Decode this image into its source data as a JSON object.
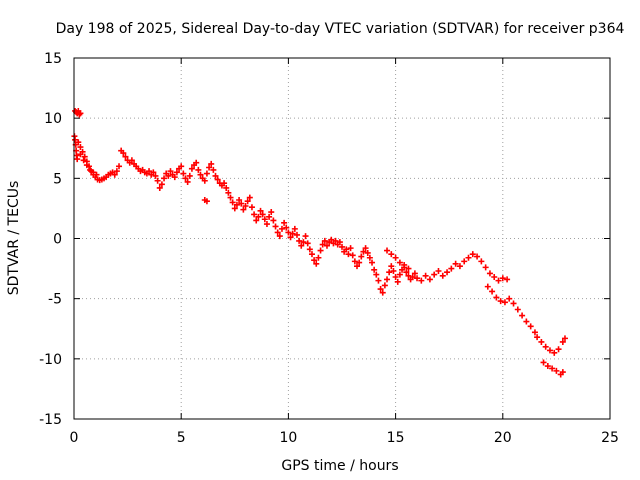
{
  "chart_data": {
    "type": "scatter",
    "title": "Day 198 of 2025, Sidereal Day-to-day VTEC variation (SDTVAR) for receiver p364",
    "xlabel": "GPS time / hours",
    "ylabel": "SDTVAR / TECUs",
    "xlim": [
      0,
      25
    ],
    "ylim": [
      -15,
      15
    ],
    "xticks": [
      0,
      5,
      10,
      15,
      20,
      25
    ],
    "yticks": [
      -15,
      -10,
      -5,
      0,
      5,
      10,
      15
    ],
    "xtick_labels": [
      "0",
      "5",
      "10",
      "15",
      "20",
      "25"
    ],
    "ytick_labels": [
      "-15",
      "-10",
      "-5",
      "0",
      "5",
      "10",
      "15"
    ],
    "grid": true,
    "marker": "+",
    "color": "#ff0000",
    "series": [
      {
        "name": "SDTVAR",
        "points": [
          [
            0.05,
            10.6
          ],
          [
            0.1,
            10.5
          ],
          [
            0.15,
            10.4
          ],
          [
            0.2,
            10.6
          ],
          [
            0.25,
            10.3
          ],
          [
            0.3,
            10.4
          ],
          [
            0.02,
            8.5
          ],
          [
            0.05,
            8.2
          ],
          [
            0.08,
            7.8
          ],
          [
            0.1,
            7.3
          ],
          [
            0.12,
            6.9
          ],
          [
            0.15,
            6.6
          ],
          [
            0.2,
            8.0
          ],
          [
            0.3,
            7.6
          ],
          [
            0.4,
            7.2
          ],
          [
            0.5,
            6.8
          ],
          [
            0.6,
            6.4
          ],
          [
            0.7,
            6.0
          ],
          [
            0.8,
            5.6
          ],
          [
            0.9,
            5.3
          ],
          [
            1.0,
            5.1
          ],
          [
            1.1,
            4.9
          ],
          [
            1.2,
            4.85
          ],
          [
            1.3,
            4.9
          ],
          [
            1.4,
            5.0
          ],
          [
            1.5,
            5.1
          ],
          [
            0.3,
            7.0
          ],
          [
            0.45,
            6.5
          ],
          [
            0.6,
            6.1
          ],
          [
            0.75,
            5.7
          ],
          [
            0.9,
            5.5
          ],
          [
            1.05,
            5.3
          ],
          [
            1.6,
            5.3
          ],
          [
            1.7,
            5.4
          ],
          [
            1.8,
            5.5
          ],
          [
            1.9,
            5.3
          ],
          [
            2.0,
            5.6
          ],
          [
            2.1,
            6.0
          ],
          [
            2.2,
            7.3
          ],
          [
            2.3,
            7.1
          ],
          [
            2.4,
            6.8
          ],
          [
            2.5,
            6.5
          ],
          [
            2.6,
            6.3
          ],
          [
            2.7,
            6.5
          ],
          [
            2.8,
            6.2
          ],
          [
            2.9,
            6.0
          ],
          [
            3.0,
            5.8
          ],
          [
            3.1,
            5.6
          ],
          [
            3.2,
            5.7
          ],
          [
            3.3,
            5.5
          ],
          [
            3.4,
            5.4
          ],
          [
            3.5,
            5.6
          ],
          [
            3.6,
            5.3
          ],
          [
            3.7,
            5.5
          ],
          [
            3.8,
            5.2
          ],
          [
            3.9,
            4.8
          ],
          [
            4.0,
            4.2
          ],
          [
            4.1,
            4.5
          ],
          [
            4.2,
            5.0
          ],
          [
            4.3,
            5.4
          ],
          [
            4.4,
            5.2
          ],
          [
            4.5,
            5.6
          ],
          [
            4.6,
            5.3
          ],
          [
            4.7,
            5.1
          ],
          [
            4.8,
            5.5
          ],
          [
            4.9,
            5.8
          ],
          [
            5.0,
            6.0
          ],
          [
            5.1,
            5.4
          ],
          [
            5.2,
            5.0
          ],
          [
            5.3,
            4.7
          ],
          [
            5.4,
            5.2
          ],
          [
            5.5,
            5.8
          ],
          [
            5.6,
            6.1
          ],
          [
            5.7,
            6.3
          ],
          [
            5.8,
            5.7
          ],
          [
            5.9,
            5.3
          ],
          [
            6.0,
            5.0
          ],
          [
            6.1,
            4.8
          ],
          [
            6.2,
            5.4
          ],
          [
            6.3,
            5.9
          ],
          [
            6.4,
            6.2
          ],
          [
            6.5,
            5.7
          ],
          [
            6.6,
            5.2
          ],
          [
            6.7,
            4.9
          ],
          [
            6.8,
            4.6
          ],
          [
            6.9,
            4.4
          ],
          [
            7.0,
            4.6
          ],
          [
            7.1,
            4.2
          ],
          [
            7.2,
            3.8
          ],
          [
            7.3,
            3.4
          ],
          [
            7.4,
            3.0
          ],
          [
            7.5,
            2.5
          ],
          [
            6.1,
            3.2
          ],
          [
            6.2,
            3.1
          ],
          [
            7.6,
            2.8
          ],
          [
            7.7,
            3.2
          ],
          [
            7.8,
            2.9
          ],
          [
            7.9,
            2.4
          ],
          [
            8.0,
            2.7
          ],
          [
            8.1,
            3.1
          ],
          [
            8.2,
            3.4
          ],
          [
            8.3,
            2.6
          ],
          [
            8.4,
            2.0
          ],
          [
            8.5,
            1.5
          ],
          [
            8.6,
            1.8
          ],
          [
            8.7,
            2.3
          ],
          [
            8.8,
            2.0
          ],
          [
            8.9,
            1.6
          ],
          [
            9.0,
            1.2
          ],
          [
            9.1,
            1.8
          ],
          [
            9.2,
            2.2
          ],
          [
            9.3,
            1.5
          ],
          [
            9.4,
            1.0
          ],
          [
            9.5,
            0.5
          ],
          [
            9.6,
            0.2
          ],
          [
            9.7,
            0.8
          ],
          [
            9.8,
            1.3
          ],
          [
            9.9,
            0.9
          ],
          [
            10.0,
            0.5
          ],
          [
            10.1,
            0.1
          ],
          [
            10.2,
            0.4
          ],
          [
            10.3,
            0.8
          ],
          [
            10.4,
            0.3
          ],
          [
            10.5,
            -0.2
          ],
          [
            10.6,
            -0.6
          ],
          [
            10.7,
            -0.3
          ],
          [
            10.8,
            0.2
          ],
          [
            10.9,
            -0.4
          ],
          [
            11.0,
            -0.9
          ],
          [
            11.1,
            -1.3
          ],
          [
            11.2,
            -1.8
          ],
          [
            11.3,
            -2.1
          ],
          [
            11.4,
            -1.6
          ],
          [
            11.5,
            -1.0
          ],
          [
            11.6,
            -0.5
          ],
          [
            11.7,
            -0.2
          ],
          [
            11.8,
            -0.6
          ],
          [
            11.9,
            -0.3
          ],
          [
            12.0,
            -0.1
          ],
          [
            12.1,
            -0.4
          ],
          [
            12.2,
            -0.2
          ],
          [
            12.3,
            -0.5
          ],
          [
            12.4,
            -0.3
          ],
          [
            12.5,
            -0.7
          ],
          [
            12.6,
            -1.1
          ],
          [
            12.7,
            -0.9
          ],
          [
            12.8,
            -1.3
          ],
          [
            12.9,
            -0.8
          ],
          [
            13.0,
            -1.4
          ],
          [
            13.1,
            -1.9
          ],
          [
            13.2,
            -2.3
          ],
          [
            13.3,
            -2.0
          ],
          [
            13.4,
            -1.5
          ],
          [
            13.5,
            -1.1
          ],
          [
            13.6,
            -0.8
          ],
          [
            13.7,
            -1.2
          ],
          [
            13.8,
            -1.6
          ],
          [
            13.9,
            -2.0
          ],
          [
            14.0,
            -2.6
          ],
          [
            14.1,
            -3.0
          ],
          [
            14.2,
            -3.5
          ],
          [
            14.3,
            -4.2
          ],
          [
            14.4,
            -4.5
          ],
          [
            14.5,
            -3.9
          ],
          [
            14.6,
            -3.4
          ],
          [
            14.7,
            -2.8
          ],
          [
            14.8,
            -2.3
          ],
          [
            14.9,
            -2.7
          ],
          [
            15.0,
            -3.2
          ],
          [
            15.1,
            -3.6
          ],
          [
            15.2,
            -3.0
          ],
          [
            15.3,
            -2.6
          ],
          [
            15.4,
            -2.4
          ],
          [
            15.5,
            -2.8
          ],
          [
            15.6,
            -3.1
          ],
          [
            15.7,
            -3.4
          ],
          [
            15.8,
            -3.2
          ],
          [
            15.9,
            -2.9
          ],
          [
            14.6,
            -1.0
          ],
          [
            14.8,
            -1.3
          ],
          [
            15.0,
            -1.6
          ],
          [
            15.2,
            -2.0
          ],
          [
            15.4,
            -2.2
          ],
          [
            15.6,
            -2.5
          ],
          [
            16.0,
            -3.3
          ],
          [
            16.2,
            -3.5
          ],
          [
            16.4,
            -3.1
          ],
          [
            16.6,
            -3.4
          ],
          [
            16.8,
            -3.0
          ],
          [
            17.0,
            -2.7
          ],
          [
            17.2,
            -3.1
          ],
          [
            17.4,
            -2.8
          ],
          [
            17.6,
            -2.5
          ],
          [
            17.8,
            -2.1
          ],
          [
            18.0,
            -2.3
          ],
          [
            18.2,
            -1.9
          ],
          [
            18.4,
            -1.6
          ],
          [
            18.6,
            -1.3
          ],
          [
            18.8,
            -1.5
          ],
          [
            19.0,
            -1.9
          ],
          [
            19.2,
            -2.4
          ],
          [
            19.4,
            -2.9
          ],
          [
            19.6,
            -3.2
          ],
          [
            19.8,
            -3.5
          ],
          [
            20.0,
            -3.3
          ],
          [
            20.2,
            -3.4
          ],
          [
            19.3,
            -4.0
          ],
          [
            19.5,
            -4.4
          ],
          [
            19.7,
            -4.9
          ],
          [
            19.9,
            -5.2
          ],
          [
            20.1,
            -5.3
          ],
          [
            20.3,
            -5.0
          ],
          [
            20.5,
            -5.4
          ],
          [
            20.7,
            -5.9
          ],
          [
            20.9,
            -6.4
          ],
          [
            21.1,
            -6.9
          ],
          [
            21.3,
            -7.3
          ],
          [
            21.5,
            -7.8
          ],
          [
            21.6,
            -8.2
          ],
          [
            21.8,
            -8.6
          ],
          [
            22.0,
            -9.0
          ],
          [
            22.2,
            -9.3
          ],
          [
            22.4,
            -9.5
          ],
          [
            22.6,
            -9.2
          ],
          [
            22.8,
            -8.6
          ],
          [
            22.9,
            -8.3
          ],
          [
            21.9,
            -10.3
          ],
          [
            22.1,
            -10.6
          ],
          [
            22.3,
            -10.8
          ],
          [
            22.5,
            -11.0
          ],
          [
            22.7,
            -11.3
          ],
          [
            22.8,
            -11.1
          ]
        ]
      }
    ]
  }
}
